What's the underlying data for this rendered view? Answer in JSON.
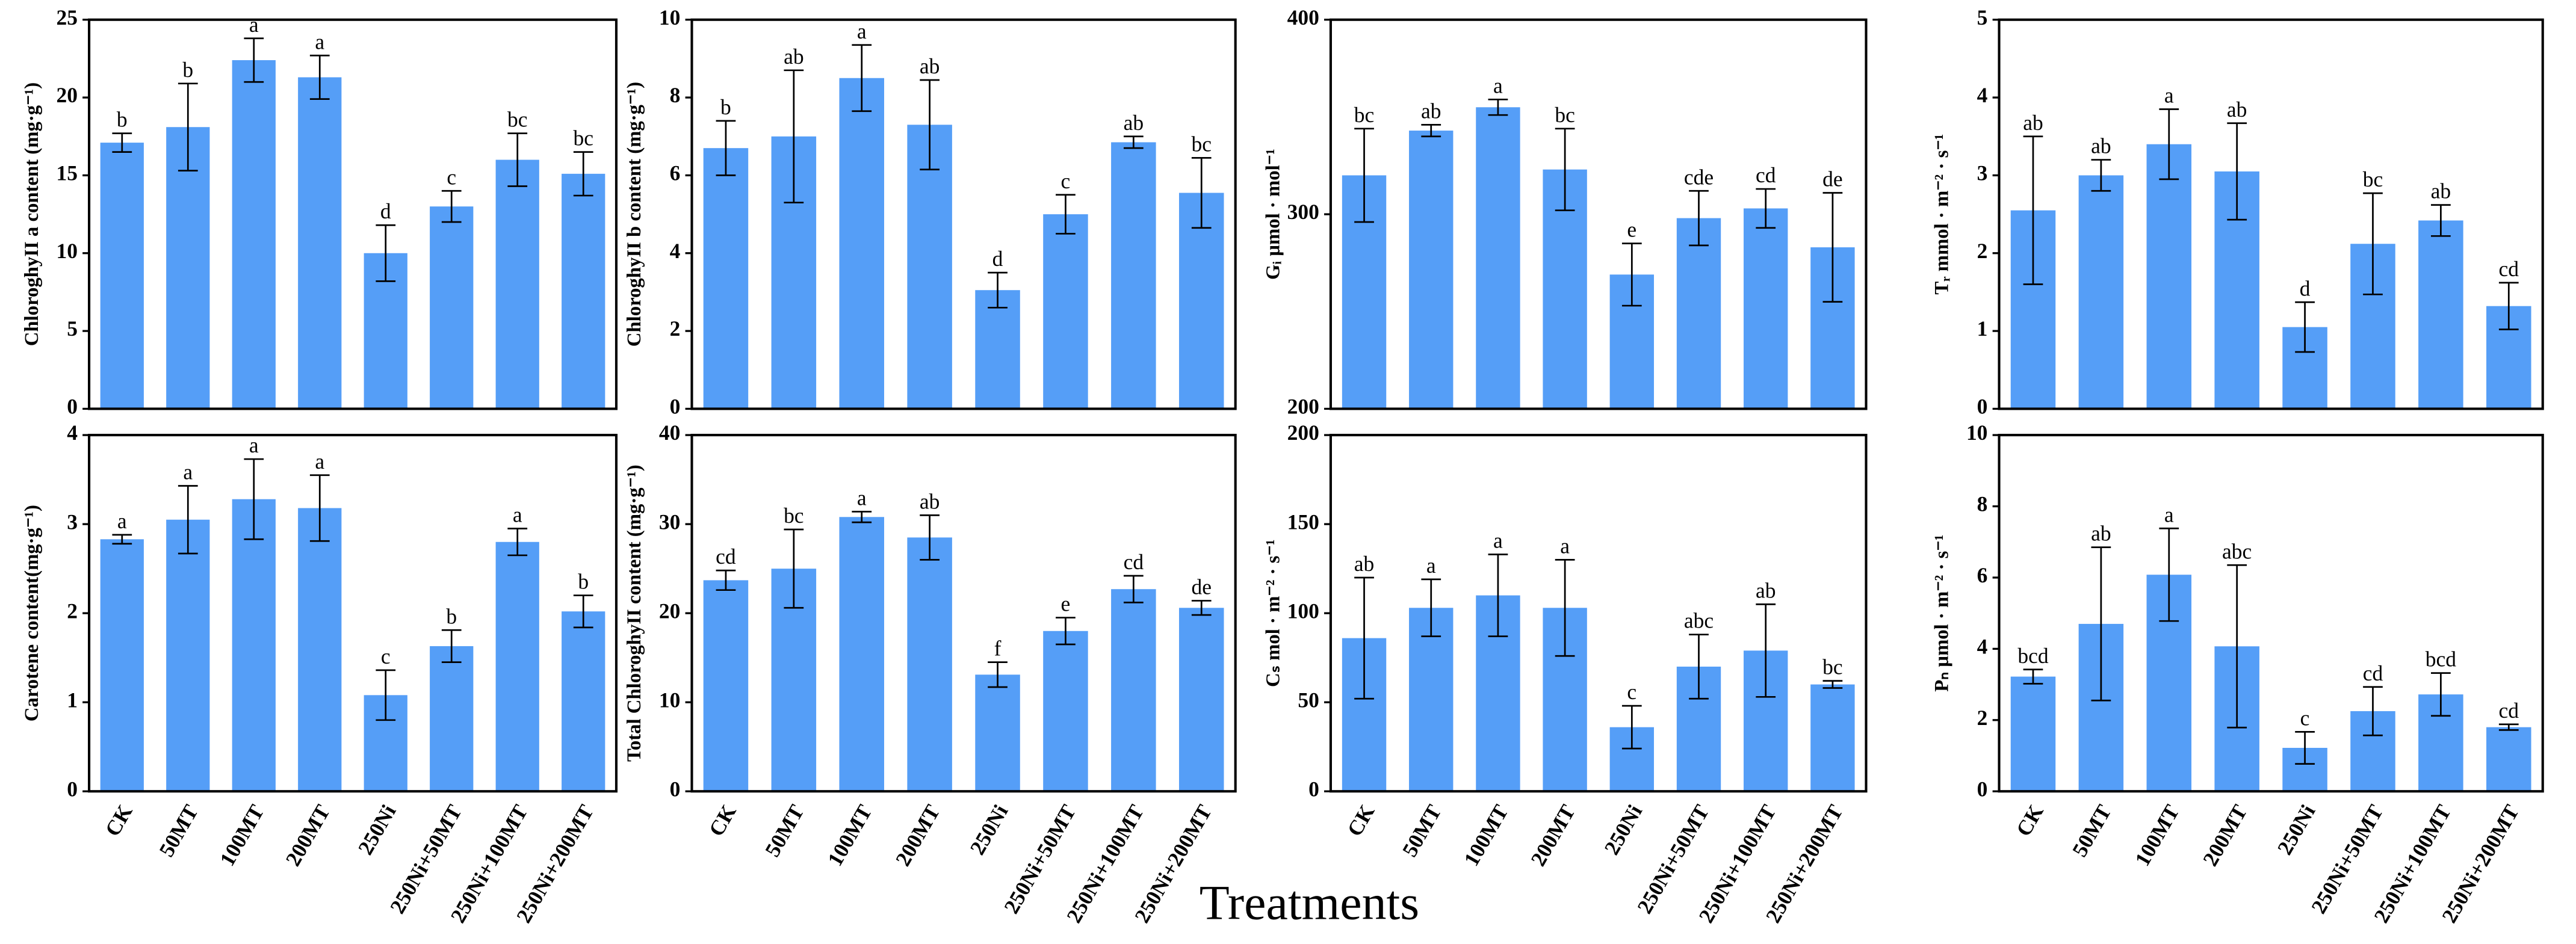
{
  "x_label": "Treatments",
  "chart_data": [
    {
      "type": "bar",
      "ylabel": "ChloroghyII a content (mg·g⁻¹)",
      "ylim": [
        0,
        25
      ],
      "yticks": [
        0,
        5,
        10,
        15,
        20,
        25
      ],
      "color": "#559ef7",
      "values": [
        17.1,
        18.1,
        22.4,
        21.3,
        10.0,
        13.0,
        16.0,
        15.1
      ],
      "errors": [
        0.6,
        2.8,
        1.4,
        1.4,
        1.8,
        1.0,
        1.7,
        1.4
      ],
      "letters": [
        "b",
        "b",
        "a",
        "a",
        "d",
        "c",
        "bc",
        "bc"
      ]
    },
    {
      "type": "bar",
      "ylabel": "ChloroghyII b content (mg·g⁻¹)",
      "ylim": [
        0,
        10
      ],
      "yticks": [
        0,
        2,
        4,
        6,
        8,
        10
      ],
      "color": "#559ef7",
      "values": [
        6.7,
        7.0,
        8.5,
        7.3,
        3.05,
        5.0,
        6.85,
        5.55
      ],
      "errors": [
        0.7,
        1.7,
        0.85,
        1.15,
        0.45,
        0.5,
        0.15,
        0.9
      ],
      "letters": [
        "b",
        "ab",
        "a",
        "ab",
        "d",
        "c",
        "ab",
        "bc"
      ]
    },
    {
      "type": "bar",
      "ylabel": "Gᵢ  μmol · mol⁻¹",
      "ylim": [
        200,
        400
      ],
      "yticks": [
        200,
        300,
        400
      ],
      "color": "#559ef7",
      "values": [
        320,
        343,
        355,
        323,
        269,
        298,
        303,
        283
      ],
      "errors": [
        24,
        3,
        4,
        21,
        16,
        14,
        10,
        28
      ],
      "letters": [
        "bc",
        "ab",
        "a",
        "bc",
        "e",
        "cde",
        "cd",
        "de"
      ]
    },
    {
      "type": "bar",
      "ylabel": "Tᵣ  mmol · m⁻² · s⁻¹",
      "ylim": [
        0,
        5
      ],
      "yticks": [
        0,
        1,
        2,
        3,
        4,
        5
      ],
      "color": "#559ef7",
      "values": [
        2.55,
        3.0,
        3.4,
        3.05,
        1.05,
        2.12,
        2.42,
        1.32
      ],
      "errors": [
        0.95,
        0.2,
        0.45,
        0.62,
        0.32,
        0.65,
        0.2,
        0.3
      ],
      "letters": [
        "ab",
        "ab",
        "a",
        "ab",
        "d",
        "bc",
        "ab",
        "cd"
      ]
    },
    {
      "type": "bar",
      "ylabel": "Carotene content(mg·g⁻¹)",
      "ylim": [
        0,
        4
      ],
      "yticks": [
        0,
        1,
        2,
        3,
        4
      ],
      "color": "#559ef7",
      "categories": [
        "CK",
        "50MT",
        "100MT",
        "200MT",
        "250Ni",
        "250Ni+50MT",
        "250Ni+100MT",
        "250Ni+200MT"
      ],
      "values": [
        2.83,
        3.05,
        3.28,
        3.18,
        1.08,
        1.63,
        2.8,
        2.02
      ],
      "errors": [
        0.05,
        0.38,
        0.45,
        0.37,
        0.28,
        0.18,
        0.15,
        0.18
      ],
      "letters": [
        "a",
        "a",
        "a",
        "a",
        "c",
        "b",
        "a",
        "b"
      ]
    },
    {
      "type": "bar",
      "ylabel": "Total ChloroghyII content (mg·g⁻¹)",
      "ylim": [
        0,
        40
      ],
      "yticks": [
        0,
        10,
        20,
        30,
        40
      ],
      "color": "#559ef7",
      "categories": [
        "CK",
        "50MT",
        "100MT",
        "200MT",
        "250Ni",
        "250Ni+50MT",
        "250Ni+100MT",
        "250Ni+200MT"
      ],
      "values": [
        23.7,
        25.0,
        30.8,
        28.5,
        13.1,
        18.0,
        22.7,
        20.6
      ],
      "errors": [
        1.1,
        4.4,
        0.6,
        2.5,
        1.4,
        1.5,
        1.5,
        0.8
      ],
      "letters": [
        "cd",
        "bc",
        "a",
        "ab",
        "f",
        "e",
        "cd",
        "de"
      ]
    },
    {
      "type": "bar",
      "ylabel": "Cₛ  mol · m⁻² · s⁻¹",
      "ylim": [
        0,
        200
      ],
      "yticks": [
        0,
        50,
        100,
        150,
        200
      ],
      "color": "#559ef7",
      "categories": [
        "CK",
        "50MT",
        "100MT",
        "200MT",
        "250Ni",
        "250Ni+50MT",
        "250Ni+100MT",
        "250Ni+200MT"
      ],
      "values": [
        86,
        103,
        110,
        103,
        36,
        70,
        79,
        60
      ],
      "errors": [
        34,
        16,
        23,
        27,
        12,
        18,
        26,
        2
      ],
      "letters": [
        "ab",
        "a",
        "a",
        "a",
        "c",
        "abc",
        "ab",
        "bc"
      ]
    },
    {
      "type": "bar",
      "ylabel": "Pₙ  μmol · m⁻² · s⁻¹",
      "ylim": [
        0,
        10
      ],
      "yticks": [
        0,
        2,
        4,
        6,
        8,
        10
      ],
      "color": "#559ef7",
      "categories": [
        "CK",
        "50MT",
        "100MT",
        "200MT",
        "250Ni",
        "250Ni+50MT",
        "250Ni+100MT",
        "250Ni+200MT"
      ],
      "values": [
        3.22,
        4.7,
        6.08,
        4.07,
        1.22,
        2.25,
        2.72,
        1.8
      ],
      "errors": [
        0.2,
        2.15,
        1.3,
        2.28,
        0.45,
        0.68,
        0.6,
        0.08
      ],
      "letters": [
        "bcd",
        "ab",
        "a",
        "abc",
        "c",
        "cd",
        "bcd",
        "cd"
      ]
    }
  ]
}
